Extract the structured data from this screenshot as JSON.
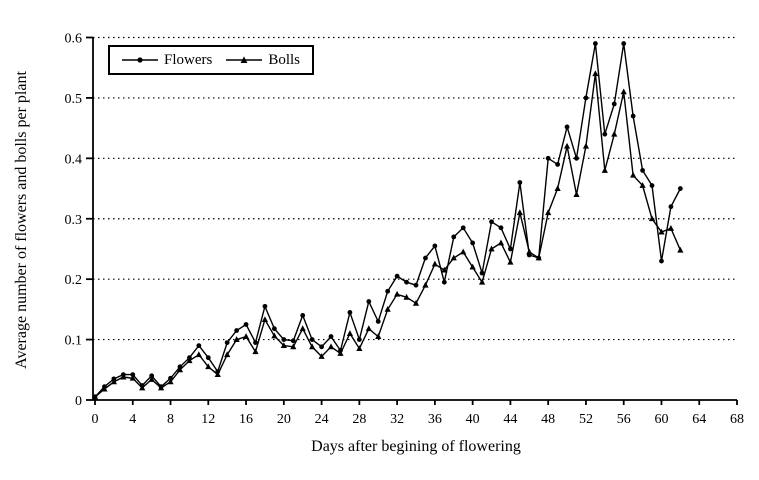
{
  "figure": {
    "background": "#ffffff",
    "line_color": "#000000"
  },
  "chart_data": {
    "type": "line",
    "title": "",
    "xlabel": "Days after begining of flowering",
    "ylabel": "Average number of flowers and bolls per plant",
    "xlim": [
      0,
      68
    ],
    "ylim": [
      0,
      0.6
    ],
    "xticks": [
      0,
      4,
      8,
      12,
      16,
      20,
      24,
      28,
      32,
      36,
      40,
      44,
      48,
      52,
      56,
      60,
      64,
      68
    ],
    "yticks": [
      0,
      0.1,
      0.2,
      0.3,
      0.4,
      0.5,
      0.6
    ],
    "grid": "horizontal-dotted",
    "legend_position": "top-left-inside",
    "x": [
      0,
      1,
      2,
      3,
      4,
      5,
      6,
      7,
      8,
      9,
      10,
      11,
      12,
      13,
      14,
      15,
      16,
      17,
      18,
      19,
      20,
      21,
      22,
      23,
      24,
      25,
      26,
      27,
      28,
      29,
      30,
      31,
      32,
      33,
      34,
      35,
      36,
      37,
      38,
      39,
      40,
      41,
      42,
      43,
      44,
      45,
      46,
      47,
      48,
      49,
      50,
      51,
      52,
      53,
      54,
      55,
      56,
      57,
      58,
      59,
      60,
      61,
      62
    ],
    "series": [
      {
        "name": "Flowers",
        "marker": "circle",
        "color": "#000000",
        "values": [
          0.005,
          0.022,
          0.035,
          0.042,
          0.042,
          0.024,
          0.04,
          0.022,
          0.036,
          0.055,
          0.07,
          0.09,
          0.07,
          0.047,
          0.095,
          0.115,
          0.125,
          0.095,
          0.155,
          0.118,
          0.1,
          0.098,
          0.14,
          0.1,
          0.088,
          0.105,
          0.082,
          0.145,
          0.1,
          0.163,
          0.13,
          0.18,
          0.205,
          0.195,
          0.19,
          0.235,
          0.255,
          0.195,
          0.27,
          0.285,
          0.26,
          0.21,
          0.295,
          0.285,
          0.25,
          0.36,
          0.24,
          0.235,
          0.4,
          0.39,
          0.452,
          0.4,
          0.5,
          0.59,
          0.44,
          0.49,
          0.59,
          0.47,
          0.38,
          0.355,
          0.23,
          0.32,
          0.35
        ]
      },
      {
        "name": "Bolls",
        "marker": "triangle",
        "color": "#000000",
        "values": [
          0.005,
          0.018,
          0.03,
          0.038,
          0.036,
          0.02,
          0.034,
          0.02,
          0.03,
          0.05,
          0.065,
          0.075,
          0.055,
          0.042,
          0.075,
          0.1,
          0.105,
          0.08,
          0.133,
          0.106,
          0.09,
          0.088,
          0.118,
          0.088,
          0.072,
          0.088,
          0.077,
          0.11,
          0.085,
          0.118,
          0.105,
          0.15,
          0.175,
          0.17,
          0.16,
          0.19,
          0.225,
          0.215,
          0.235,
          0.245,
          0.22,
          0.195,
          0.25,
          0.26,
          0.228,
          0.31,
          0.245,
          0.235,
          0.31,
          0.35,
          0.42,
          0.34,
          0.42,
          0.54,
          0.38,
          0.44,
          0.51,
          0.372,
          0.355,
          0.3,
          0.278,
          0.284,
          0.248
        ]
      }
    ]
  }
}
